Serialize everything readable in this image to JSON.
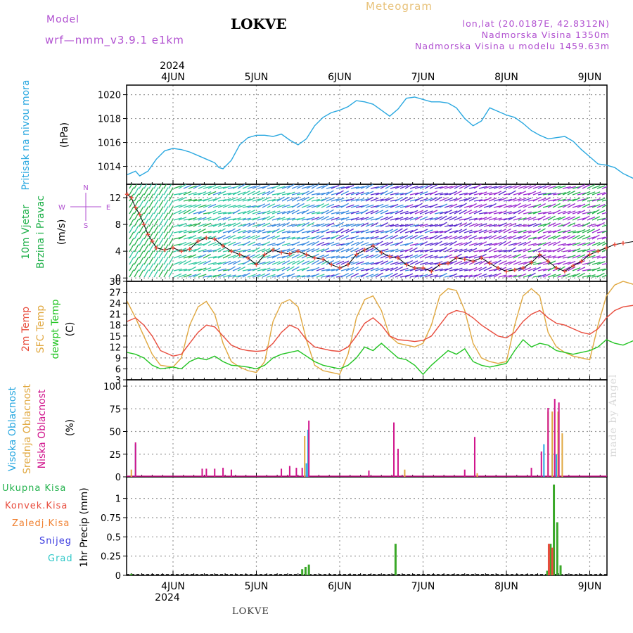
{
  "header": {
    "model_label": "Model",
    "model_version": "wrf—nmm_v3.9.1  e1km",
    "station": "LOKVE",
    "meteogram": "Meteogram",
    "lonlat": "lon,lat (20.0187E, 42.8312N)",
    "altitude": "Nadmorska Visina 1350m",
    "altitude_model": "Nadmorska Visina u modelu 1459.63m",
    "year": "2024",
    "footer_station": "LOKVE",
    "watermark": "made by Angel"
  },
  "colors": {
    "pressure": "#2aa8e0",
    "wind_green": "#22b14c",
    "wind_label": "#b04fd0",
    "temp2m": "#e84c3d",
    "sfc": "#e0a840",
    "dew": "#22c422",
    "high": "#2aa8e0",
    "mid": "#e0a840",
    "low": "#d0148c",
    "total": "#22b14c",
    "conv": "#e84c3d",
    "frozen": "#f08030",
    "snow": "#3a3ae0",
    "hail": "#30c8c8"
  },
  "chart_data": [
    {
      "type": "line",
      "ylabel_top": "Pritisak na nivou mora",
      "ylabel": "(hPa)",
      "x_ticks": [
        "4JUN",
        "5JUN",
        "6JUN",
        "7JUN",
        "8JUN",
        "9JUN"
      ],
      "x_range_days": [
        -0.55,
        5.55
      ],
      "ylim": [
        1012.5,
        1020.8
      ],
      "y_ticks": [
        1014,
        1016,
        1018,
        1020
      ],
      "grid": true,
      "series": [
        {
          "x": [
            -0.55,
            -0.45,
            -0.4,
            -0.3,
            -0.2,
            -0.1,
            0.0,
            0.1,
            0.2,
            0.3,
            0.4,
            0.5,
            0.55,
            0.6,
            0.7,
            0.8,
            0.9,
            1.0,
            1.1,
            1.2,
            1.3,
            1.4,
            1.5,
            1.6,
            1.7,
            1.8,
            1.9,
            2.0,
            2.1,
            2.2,
            2.3,
            2.4,
            2.5,
            2.6,
            2.7,
            2.8,
            2.9,
            3.0,
            3.1,
            3.2,
            3.3,
            3.4,
            3.5,
            3.6,
            3.7,
            3.8,
            3.9,
            4.0,
            4.1,
            4.2,
            4.3,
            4.4,
            4.5,
            4.6,
            4.7,
            4.8,
            4.9,
            5.0,
            5.1,
            5.2,
            5.3,
            5.4,
            5.55
          ],
          "y": [
            1013.3,
            1013.6,
            1013.2,
            1013.6,
            1014.6,
            1015.3,
            1015.5,
            1015.4,
            1015.2,
            1014.9,
            1014.6,
            1014.3,
            1013.9,
            1013.8,
            1014.5,
            1015.8,
            1016.4,
            1016.6,
            1016.6,
            1016.5,
            1016.7,
            1016.2,
            1015.8,
            1016.3,
            1017.4,
            1018.1,
            1018.5,
            1018.7,
            1019.0,
            1019.5,
            1019.4,
            1019.2,
            1018.7,
            1018.2,
            1018.8,
            1019.7,
            1019.8,
            1019.6,
            1019.4,
            1019.4,
            1019.3,
            1018.9,
            1018.0,
            1017.4,
            1017.8,
            1018.9,
            1018.6,
            1018.3,
            1018.1,
            1017.6,
            1017.0,
            1016.6,
            1016.3,
            1016.4,
            1016.5,
            1016.1,
            1015.4,
            1014.8,
            1014.2,
            1014.1,
            1013.9,
            1013.4,
            1012.9
          ]
        }
      ]
    },
    {
      "type": "line",
      "ylabel_top": "10m Vjetar",
      "ylabel_mid": "Brzina i Pravac",
      "ylabel": "(m/s)",
      "compass_n": "N",
      "compass_e": "E",
      "compass_w": "W",
      "compass_s": "S",
      "ylim": [
        -0.5,
        14
      ],
      "y_ticks": [
        0,
        4,
        8,
        12
      ],
      "grid": true,
      "series": [
        {
          "x": [
            -0.55,
            -0.5,
            -0.45,
            -0.4,
            -0.35,
            -0.3,
            -0.25,
            -0.2,
            -0.1,
            0.0,
            0.1,
            0.2,
            0.3,
            0.4,
            0.5,
            0.6,
            0.7,
            0.8,
            0.9,
            1.0,
            1.1,
            1.2,
            1.3,
            1.4,
            1.5,
            1.6,
            1.7,
            1.8,
            1.9,
            2.0,
            2.1,
            2.2,
            2.3,
            2.4,
            2.5,
            2.6,
            2.7,
            2.8,
            2.9,
            3.0,
            3.1,
            3.2,
            3.3,
            3.4,
            3.5,
            3.6,
            3.7,
            3.8,
            3.9,
            4.0,
            4.1,
            4.2,
            4.3,
            4.4,
            4.5,
            4.6,
            4.7,
            4.8,
            4.9,
            5.0,
            5.1,
            5.2,
            5.3,
            5.4,
            5.55
          ],
          "y": [
            12.5,
            12.0,
            10.5,
            9.5,
            8.0,
            6.5,
            5.5,
            4.5,
            4.2,
            4.5,
            4.0,
            4.3,
            5.5,
            6.0,
            5.8,
            4.8,
            4.0,
            3.5,
            3.0,
            2.0,
            3.5,
            4.2,
            3.8,
            3.6,
            4.0,
            3.5,
            3.0,
            2.8,
            2.0,
            1.5,
            2.0,
            3.5,
            4.2,
            4.8,
            3.8,
            3.2,
            3.0,
            2.0,
            1.5,
            1.5,
            1.0,
            2.0,
            2.2,
            3.0,
            2.8,
            2.5,
            3.0,
            2.2,
            1.5,
            1.0,
            1.2,
            1.5,
            2.3,
            3.5,
            2.5,
            1.5,
            1.0,
            1.8,
            2.5,
            3.5,
            4.0,
            4.5,
            5.0,
            5.2,
            5.5
          ]
        }
      ]
    },
    {
      "type": "line",
      "ylabel_a": "2m Temp",
      "ylabel_b": "SFC Temp",
      "ylabel_c": "dewpt Temp",
      "ylabel": "(C)",
      "ylim": [
        3,
        30
      ],
      "y_ticks": [
        3,
        6,
        9,
        12,
        15,
        18,
        21,
        24,
        27,
        30
      ],
      "grid": true,
      "series": [
        {
          "name": "2m Temp",
          "x": [
            -0.55,
            -0.45,
            -0.35,
            -0.25,
            -0.15,
            0.0,
            0.1,
            0.2,
            0.3,
            0.4,
            0.5,
            0.6,
            0.7,
            0.8,
            0.9,
            1.0,
            1.1,
            1.2,
            1.3,
            1.4,
            1.5,
            1.6,
            1.7,
            1.8,
            1.9,
            2.0,
            2.1,
            2.2,
            2.3,
            2.4,
            2.5,
            2.6,
            2.7,
            2.8,
            2.9,
            3.0,
            3.1,
            3.2,
            3.3,
            3.4,
            3.5,
            3.6,
            3.7,
            3.8,
            3.9,
            4.0,
            4.1,
            4.2,
            4.3,
            4.4,
            4.5,
            4.6,
            4.7,
            4.8,
            4.9,
            5.0,
            5.1,
            5.2,
            5.3,
            5.4,
            5.55
          ],
          "y": [
            19,
            20,
            18,
            15,
            11,
            9.5,
            10,
            13,
            16,
            18,
            17.5,
            15,
            12.5,
            11.5,
            11,
            10.8,
            11,
            13,
            16,
            18,
            17,
            14,
            12,
            11.5,
            11,
            10.8,
            12,
            15,
            18.5,
            20,
            18,
            15,
            14,
            13.8,
            13.5,
            13.8,
            15,
            18,
            21,
            22,
            21.5,
            20,
            18,
            16.5,
            15,
            14.5,
            16,
            19,
            21,
            22,
            20,
            18.5,
            18,
            17,
            16,
            15.5,
            17,
            20,
            22,
            23,
            23.5
          ]
        },
        {
          "name": "SFC Temp",
          "x": [
            -0.55,
            -0.45,
            -0.35,
            -0.25,
            -0.15,
            0.0,
            0.1,
            0.2,
            0.3,
            0.4,
            0.5,
            0.6,
            0.7,
            0.8,
            0.9,
            1.0,
            1.1,
            1.2,
            1.3,
            1.4,
            1.5,
            1.6,
            1.7,
            1.8,
            1.9,
            2.0,
            2.1,
            2.2,
            2.3,
            2.4,
            2.5,
            2.6,
            2.7,
            2.8,
            2.9,
            3.0,
            3.1,
            3.2,
            3.3,
            3.4,
            3.5,
            3.6,
            3.7,
            3.8,
            3.9,
            4.0,
            4.1,
            4.2,
            4.3,
            4.4,
            4.5,
            4.6,
            4.7,
            4.8,
            4.9,
            5.0,
            5.1,
            5.2,
            5.3,
            5.4,
            5.55
          ],
          "y": [
            24.5,
            20,
            15,
            10,
            7,
            6.5,
            9,
            18,
            23,
            24.5,
            21,
            13,
            8,
            6.5,
            5.5,
            5,
            8,
            19,
            24,
            25,
            23,
            14,
            7,
            5.5,
            5,
            4.5,
            10,
            20,
            25,
            26,
            22,
            15,
            13,
            12.5,
            12,
            13,
            18,
            26,
            28,
            27.5,
            22,
            13,
            9,
            8,
            7.5,
            8,
            18,
            26,
            28,
            26,
            16,
            12,
            10.5,
            9.5,
            9,
            8.5,
            18,
            26,
            29,
            30,
            29
          ]
        },
        {
          "name": "dewpt Temp",
          "x": [
            -0.55,
            -0.45,
            -0.35,
            -0.25,
            -0.15,
            0.0,
            0.1,
            0.2,
            0.3,
            0.4,
            0.5,
            0.6,
            0.7,
            0.8,
            0.9,
            1.0,
            1.1,
            1.2,
            1.3,
            1.4,
            1.5,
            1.6,
            1.7,
            1.8,
            1.9,
            2.0,
            2.1,
            2.2,
            2.3,
            2.4,
            2.5,
            2.6,
            2.7,
            2.8,
            2.9,
            3.0,
            3.1,
            3.2,
            3.3,
            3.4,
            3.5,
            3.6,
            3.7,
            3.8,
            3.9,
            4.0,
            4.1,
            4.2,
            4.3,
            4.4,
            4.5,
            4.6,
            4.7,
            4.8,
            4.9,
            5.0,
            5.1,
            5.2,
            5.3,
            5.4,
            5.55
          ],
          "y": [
            10.5,
            10,
            9,
            7,
            6,
            6.5,
            6,
            8,
            9,
            8.5,
            9.5,
            8,
            7,
            6.8,
            6.5,
            6,
            7,
            9,
            10,
            10.5,
            11,
            9.5,
            8,
            7,
            6.5,
            6,
            7,
            9,
            12,
            11,
            13,
            11,
            9,
            8.5,
            7,
            4.5,
            7,
            9,
            11,
            10,
            11.5,
            8,
            7,
            6.5,
            7,
            7.5,
            11,
            14,
            12,
            13,
            12.5,
            11,
            10.5,
            10,
            10.5,
            11,
            12,
            14,
            13,
            12.5,
            14
          ]
        }
      ]
    },
    {
      "type": "bar",
      "ylabel_a": "Visoka Oblacnost",
      "ylabel_b": "Srednja Oblacnost",
      "ylabel_c": "Niska Oblacnost",
      "ylabel": "(%)",
      "ylim": [
        0,
        107
      ],
      "y_ticks": [
        0,
        25,
        50,
        75,
        100
      ],
      "grid": true,
      "series": [
        {
          "name": "high",
          "x": [
            -0.45,
            1.6,
            1.62,
            4.45,
            4.55,
            4.6,
            5.55
          ],
          "values": [
            36,
            15,
            52,
            36,
            25,
            25,
            2
          ]
        },
        {
          "name": "mid",
          "x": [
            -0.5,
            1.58,
            2.78,
            3.65,
            4.5,
            4.55,
            4.62,
            4.67
          ],
          "values": [
            8,
            45,
            8,
            4,
            72,
            72,
            72,
            48
          ]
        },
        {
          "name": "low",
          "x": [
            -0.45,
            0.35,
            0.4,
            0.5,
            0.6,
            0.7,
            1.3,
            1.4,
            1.48,
            1.55,
            1.63,
            2.35,
            2.65,
            2.7,
            3.5,
            3.62,
            4.3,
            4.42,
            4.5,
            4.58,
            4.63
          ],
          "values": [
            38,
            9,
            9,
            9,
            10,
            8,
            9,
            12,
            10,
            10,
            62,
            7,
            60,
            31,
            8,
            44,
            10,
            28,
            76,
            86,
            82
          ]
        }
      ]
    },
    {
      "type": "bar",
      "ylabel": "1hr Precip (mm)",
      "legend": [
        "Ukupna  Kisa",
        "Konvek.Kisa",
        "Zaledj.Kisa",
        "Snijeg",
        "Grad"
      ],
      "ylim": [
        0,
        1.28
      ],
      "y_ticks": [
        0,
        0.25,
        0.5,
        0.75,
        1
      ],
      "grid": true,
      "x_labels_bottom": [
        "4JUN",
        "5JUN",
        "6JUN",
        "7JUN",
        "8JUN",
        "9JUN"
      ],
      "series": [
        {
          "name": "Ukupna  Kisa",
          "x": [
            -0.5,
            1.55,
            1.59,
            1.63,
            2.67,
            4.49,
            4.53,
            4.57,
            4.61,
            4.65
          ],
          "values": [
            0.02,
            0.08,
            0.11,
            0.14,
            0.41,
            0.06,
            0.41,
            1.18,
            0.69,
            0.13
          ]
        },
        {
          "name": "Konvek.Kisa",
          "x": [
            4.51,
            4.55
          ],
          "values": [
            0.41,
            0.36
          ]
        }
      ]
    }
  ]
}
